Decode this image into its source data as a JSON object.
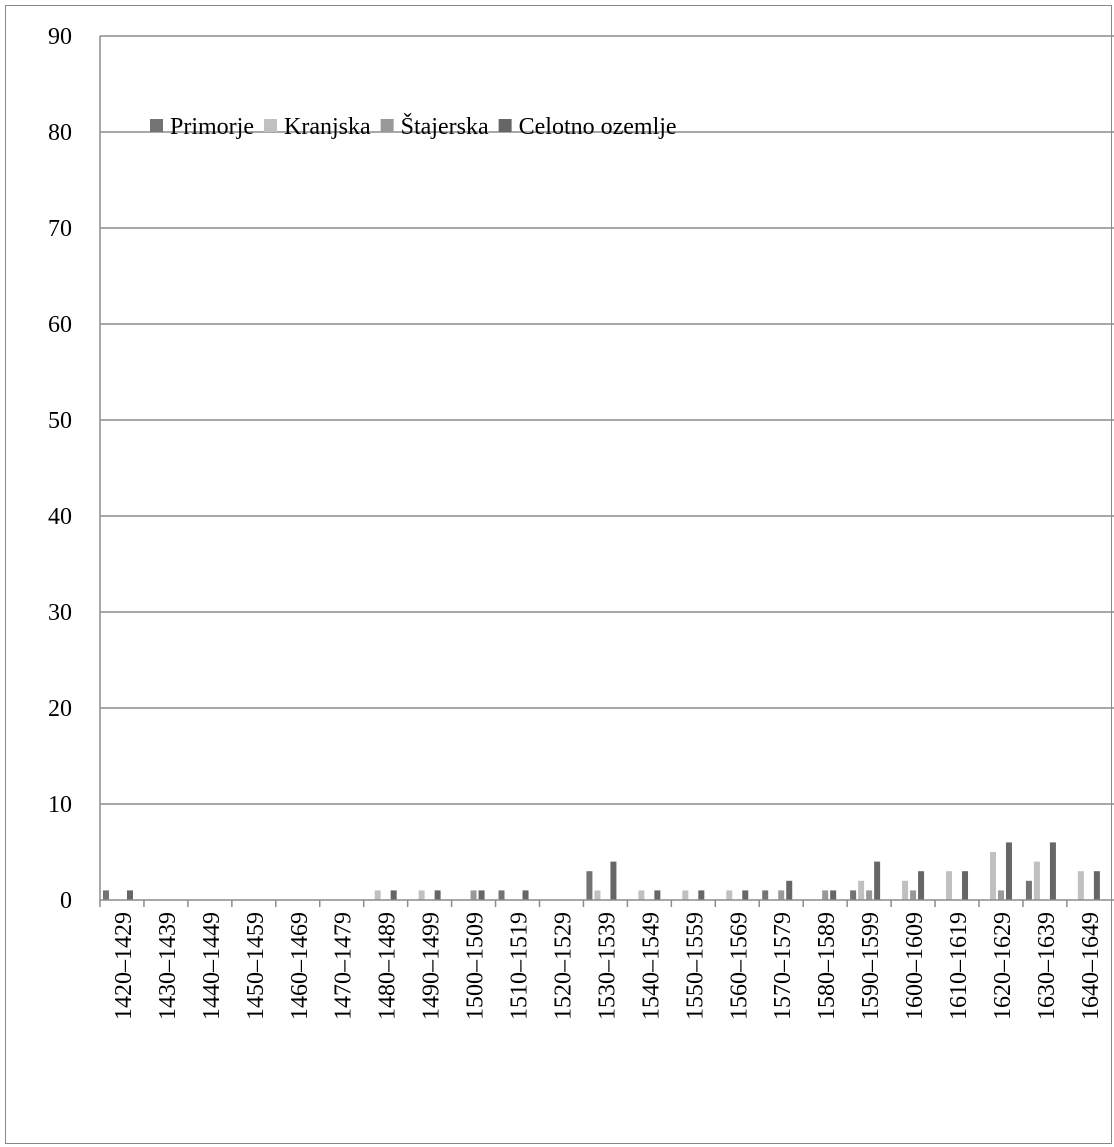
{
  "chart_data": {
    "type": "bar",
    "title": "",
    "xlabel": "",
    "ylabel": "",
    "ylim": [
      0,
      90
    ],
    "yticks": [
      "0",
      "10",
      "20",
      "30",
      "40",
      "50",
      "60",
      "70",
      "80",
      "90"
    ],
    "grid": "horizontal",
    "legend_position": "top-left",
    "categories": [
      "1420–1429",
      "1430–1439",
      "1440–1449",
      "1450–1459",
      "1460–1469",
      "1470–1479",
      "1480–1489",
      "1490–1499",
      "1500–1509",
      "1510–1519",
      "1520–1529",
      "1530–1539",
      "1540–1549",
      "1550–1559",
      "1560–1569",
      "1570–1579",
      "1580–1589",
      "1590–1599",
      "1600–1609",
      "1610–1619",
      "1620–1629",
      "1630–1639",
      "1640–1649"
    ],
    "series": [
      {
        "name": "Primorje",
        "color": "#737373",
        "values": [
          1,
          0,
          0,
          0,
          0,
          0,
          0,
          0,
          0,
          1,
          0,
          3,
          0,
          0,
          0,
          1,
          0,
          1,
          0,
          0,
          0,
          2,
          0
        ]
      },
      {
        "name": "Kranjska",
        "color": "#c0c0c0",
        "values": [
          0,
          0,
          0,
          0,
          0,
          0,
          1,
          1,
          0,
          0,
          0,
          1,
          1,
          1,
          1,
          0,
          0,
          2,
          2,
          3,
          5,
          4,
          3
        ]
      },
      {
        "name": "Štajerska",
        "color": "#999999",
        "values": [
          0,
          0,
          0,
          0,
          0,
          0,
          0,
          0,
          1,
          0,
          0,
          0,
          0,
          0,
          0,
          1,
          1,
          1,
          1,
          0,
          1,
          0,
          0
        ]
      },
      {
        "name": "Celotno ozemlje",
        "color": "#666666",
        "values": [
          1,
          0,
          0,
          0,
          0,
          0,
          1,
          1,
          1,
          1,
          0,
          4,
          1,
          1,
          1,
          2,
          1,
          4,
          3,
          3,
          6,
          6,
          3
        ]
      }
    ]
  }
}
